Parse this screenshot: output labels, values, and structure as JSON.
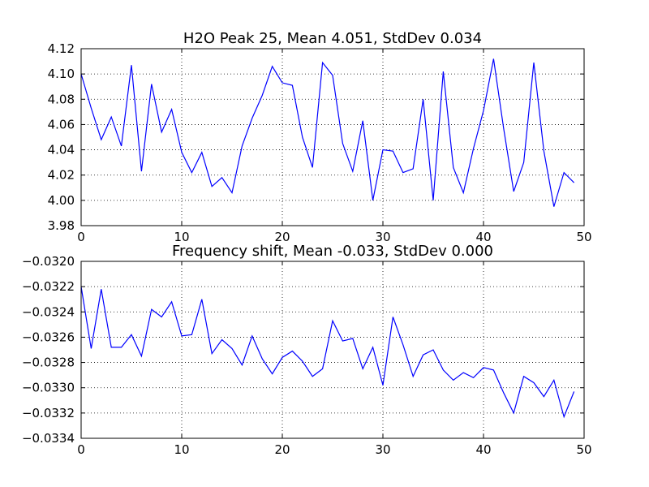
{
  "chart_data": [
    {
      "type": "line",
      "title": "H2O Peak 25, Mean 4.051, StdDev 0.034",
      "xlabel": "",
      "ylabel": "",
      "xlim": [
        0,
        50
      ],
      "ylim": [
        3.98,
        4.12
      ],
      "x_ticks": [
        0,
        10,
        20,
        30,
        40,
        50
      ],
      "x_tick_labels": [
        "0",
        "10",
        "20",
        "30",
        "40",
        "50"
      ],
      "y_ticks": [
        3.98,
        4.0,
        4.02,
        4.04,
        4.06,
        4.08,
        4.1,
        4.12
      ],
      "y_tick_labels": [
        "3.98",
        "4.00",
        "4.02",
        "4.04",
        "4.06",
        "4.08",
        "4.10",
        "4.12"
      ],
      "grid": true,
      "line_color": "#0000ff",
      "series": [
        {
          "x": [
            0,
            1,
            2,
            3,
            4,
            5,
            6,
            7,
            8,
            9,
            10,
            11,
            12,
            13,
            14,
            15,
            16,
            17,
            18,
            19,
            20,
            21,
            22,
            23,
            24,
            25,
            26,
            27,
            28,
            29,
            30,
            31,
            32,
            33,
            34,
            35,
            36,
            37,
            38,
            39,
            40,
            41,
            42,
            43,
            44,
            45,
            46,
            47,
            48,
            49
          ],
          "values": [
            4.1,
            4.073,
            4.048,
            4.066,
            4.043,
            4.107,
            4.023,
            4.092,
            4.054,
            4.072,
            4.038,
            4.022,
            4.038,
            4.011,
            4.018,
            4.006,
            4.043,
            4.065,
            4.083,
            4.106,
            4.093,
            4.091,
            4.05,
            4.026,
            4.109,
            4.099,
            4.045,
            4.023,
            4.063,
            4.0,
            4.04,
            4.039,
            4.022,
            4.025,
            4.08,
            4.0,
            4.102,
            4.026,
            4.006,
            4.041,
            4.071,
            4.112,
            4.057,
            4.007,
            4.03,
            4.109,
            4.039,
            3.995,
            4.022,
            4.014
          ]
        }
      ]
    },
    {
      "type": "line",
      "title": "Frequency shift, Mean -0.033, StdDev 0.000",
      "xlabel": "",
      "ylabel": "",
      "xlim": [
        0,
        50
      ],
      "ylim": [
        -0.0334,
        -0.032
      ],
      "x_ticks": [
        0,
        10,
        20,
        30,
        40,
        50
      ],
      "x_tick_labels": [
        "0",
        "10",
        "20",
        "30",
        "40",
        "50"
      ],
      "y_ticks": [
        -0.0334,
        -0.0332,
        -0.033,
        -0.0328,
        -0.0326,
        -0.0324,
        -0.0322,
        -0.032
      ],
      "y_tick_labels": [
        "−0.0334",
        "−0.0332",
        "−0.0330",
        "−0.0328",
        "−0.0326",
        "−0.0324",
        "−0.0322",
        "−0.0320"
      ],
      "grid": true,
      "line_color": "#0000ff",
      "series": [
        {
          "x": [
            0,
            1,
            2,
            3,
            4,
            5,
            6,
            7,
            8,
            9,
            10,
            11,
            12,
            13,
            14,
            15,
            16,
            17,
            18,
            19,
            20,
            21,
            22,
            23,
            24,
            25,
            26,
            27,
            28,
            29,
            30,
            31,
            32,
            33,
            34,
            35,
            36,
            37,
            38,
            39,
            40,
            41,
            42,
            43,
            44,
            45,
            46,
            47,
            48,
            49
          ],
          "values": [
            -0.0322,
            -0.03269,
            -0.03222,
            -0.03268,
            -0.03268,
            -0.03258,
            -0.03275,
            -0.03238,
            -0.03244,
            -0.03232,
            -0.03259,
            -0.03258,
            -0.0323,
            -0.03273,
            -0.03262,
            -0.03269,
            -0.03282,
            -0.03259,
            -0.03277,
            -0.03289,
            -0.03276,
            -0.03271,
            -0.03279,
            -0.03291,
            -0.03285,
            -0.03247,
            -0.03263,
            -0.03261,
            -0.03285,
            -0.03268,
            -0.03298,
            -0.03244,
            -0.03266,
            -0.03291,
            -0.03274,
            -0.0327,
            -0.03286,
            -0.03294,
            -0.03288,
            -0.03292,
            -0.03284,
            -0.03286,
            -0.03304,
            -0.0332,
            -0.03291,
            -0.03296,
            -0.03307,
            -0.03294,
            -0.03323,
            -0.03303
          ]
        }
      ]
    }
  ]
}
